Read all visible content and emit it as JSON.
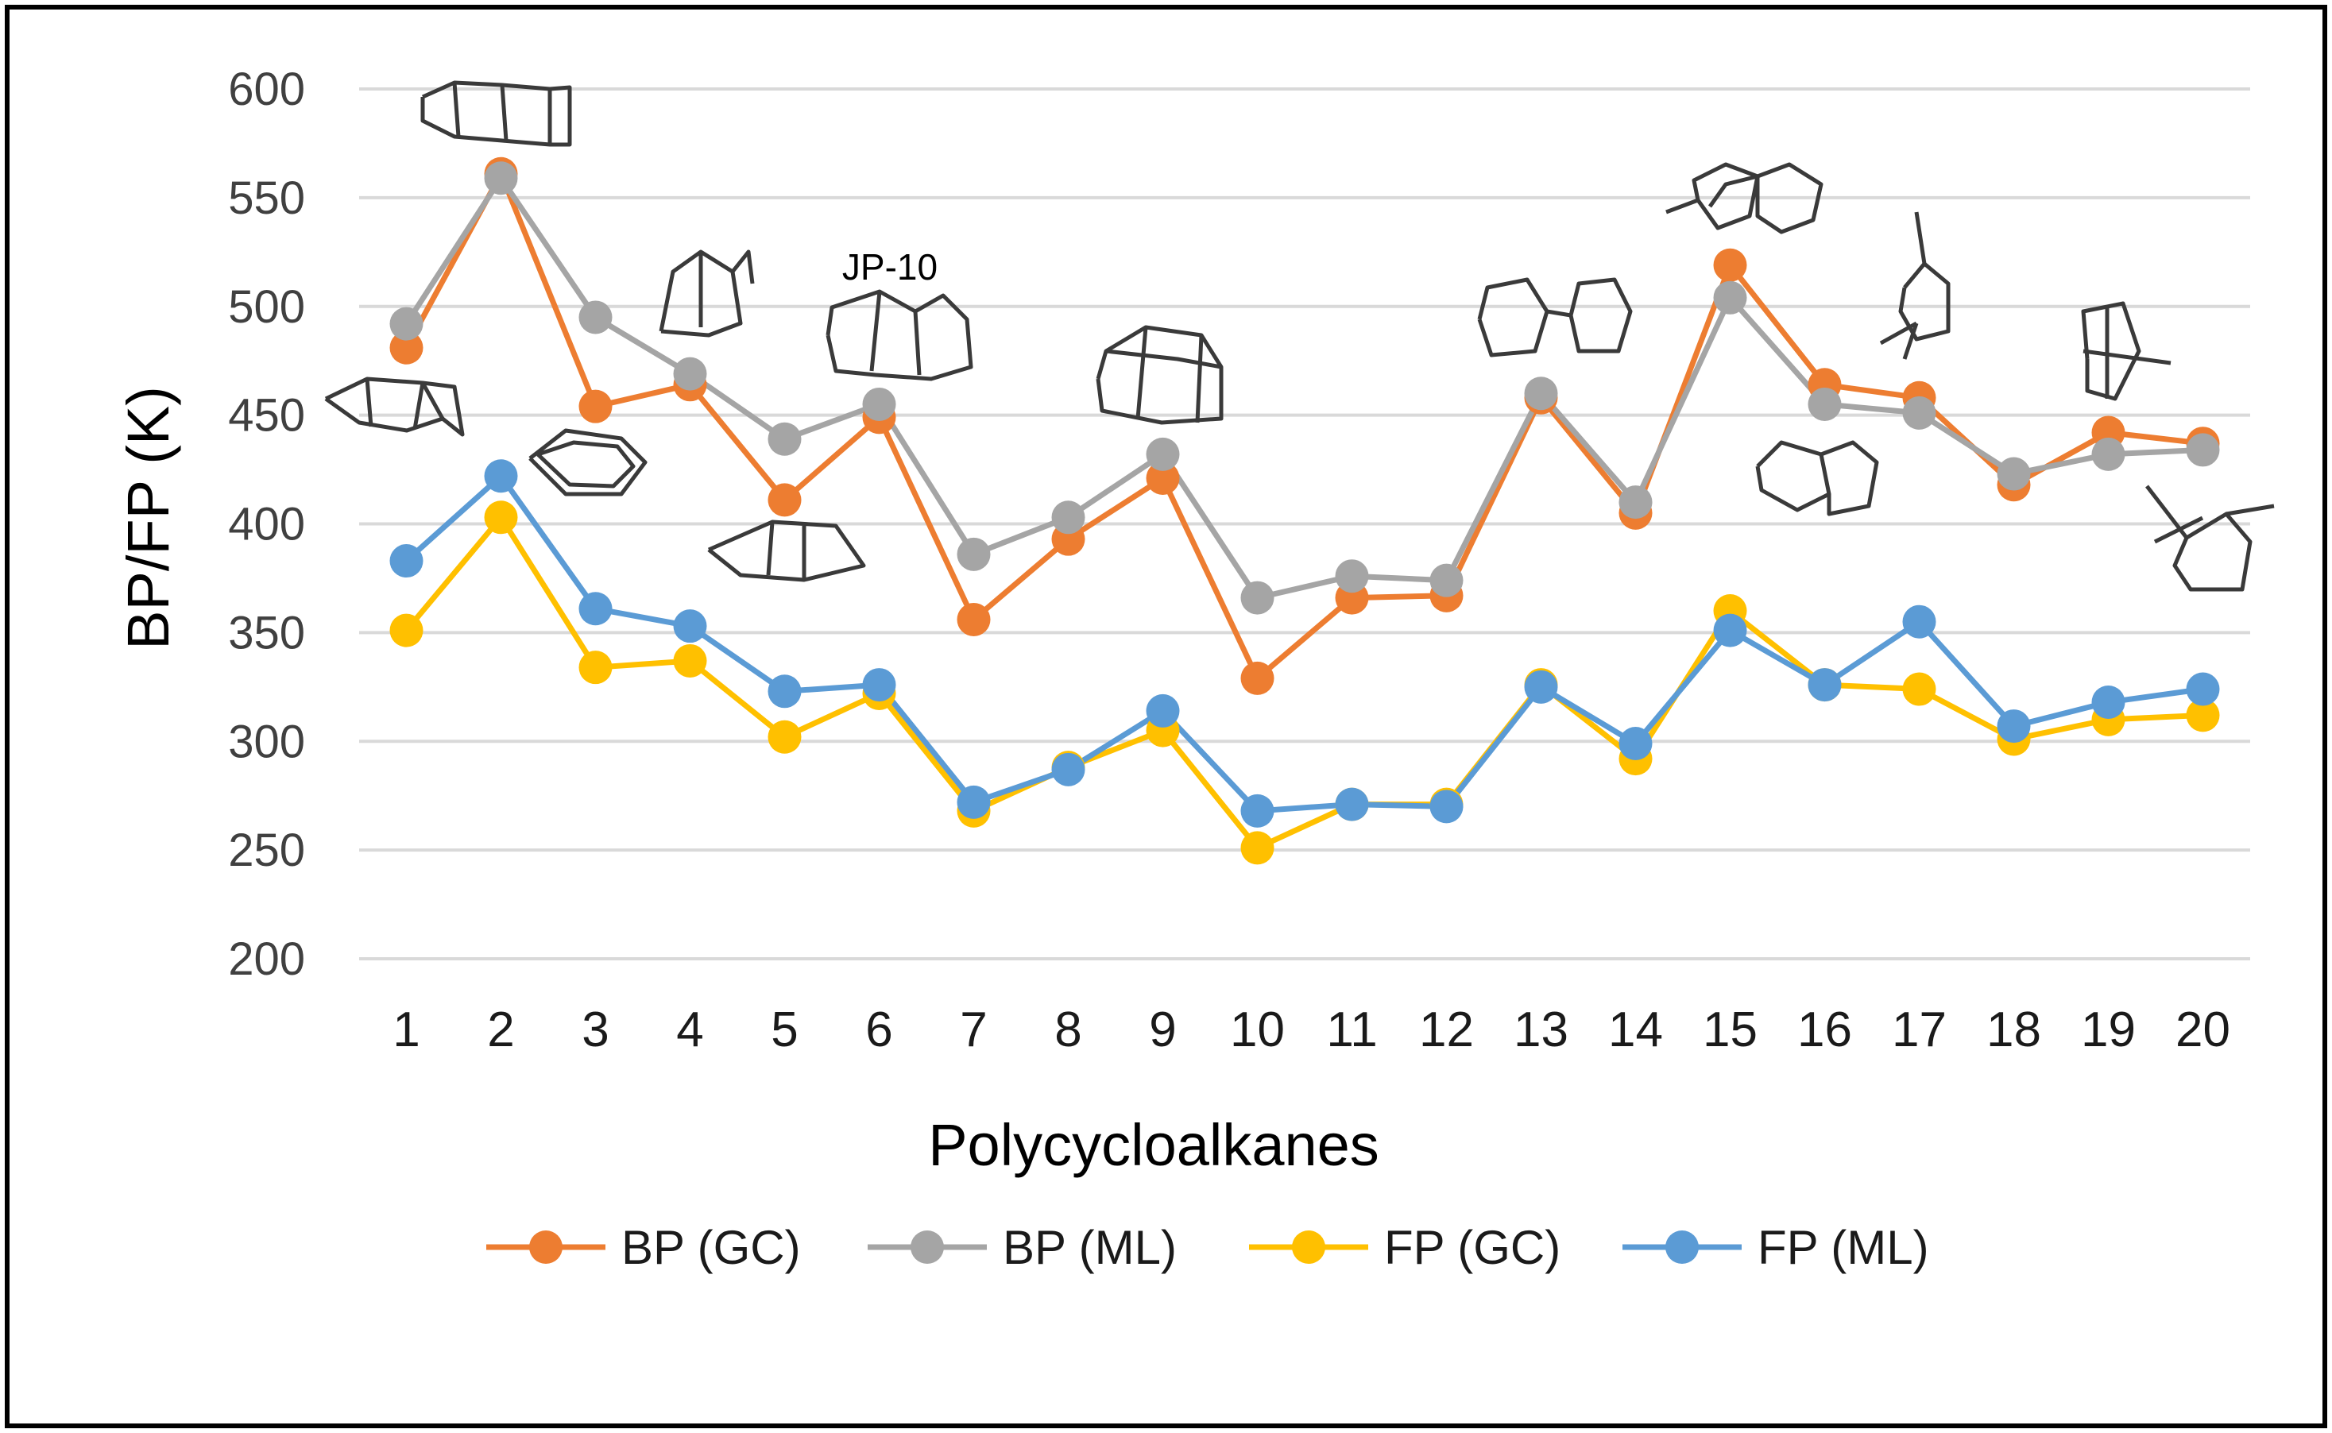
{
  "chart_data": {
    "type": "line",
    "title": "",
    "xlabel": "Polycycloalkanes",
    "ylabel": "BP/FP (K)",
    "ylim": [
      200,
      600
    ],
    "yticks": [
      200,
      250,
      300,
      350,
      400,
      450,
      500,
      550,
      600
    ],
    "categories": [
      "1",
      "2",
      "3",
      "4",
      "5",
      "6",
      "7",
      "8",
      "9",
      "10",
      "11",
      "12",
      "13",
      "14",
      "15",
      "16",
      "17",
      "18",
      "19",
      "20"
    ],
    "grid": "horizontal",
    "legend": "bottom",
    "annotations": [
      "JP-10"
    ],
    "series": [
      {
        "name": "BP (GC)",
        "color": "#ED7D31",
        "values": [
          481,
          561,
          454,
          464,
          411,
          449,
          356,
          393,
          421,
          329,
          366,
          367,
          458,
          405,
          519,
          464,
          458,
          418,
          442,
          437
        ]
      },
      {
        "name": "BP (ML)",
        "color": "#A5A5A5",
        "values": [
          492,
          559,
          495,
          469,
          439,
          455,
          386,
          403,
          432,
          366,
          376,
          374,
          460,
          410,
          504,
          455,
          451,
          423,
          432,
          434
        ]
      },
      {
        "name": "FP (GC)",
        "color": "#FFC000",
        "values": [
          351,
          403,
          334,
          337,
          302,
          322,
          268,
          288,
          305,
          251,
          271,
          271,
          326,
          292,
          360,
          326,
          324,
          301,
          310,
          312
        ]
      },
      {
        "name": "FP (ML)",
        "color": "#5B9BD5",
        "values": [
          383,
          422,
          361,
          353,
          323,
          326,
          272,
          287,
          314,
          268,
          271,
          270,
          325,
          299,
          351,
          326,
          355,
          307,
          318,
          324
        ]
      }
    ]
  }
}
